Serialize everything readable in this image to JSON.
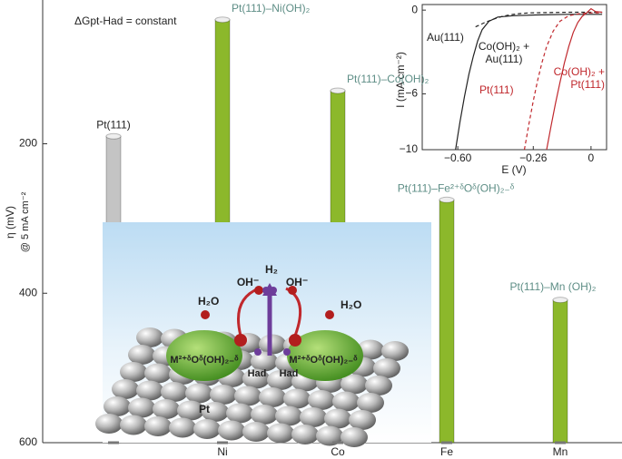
{
  "chart_data": [
    {
      "type": "bar",
      "annotation": "ΔGpt-Had = constant",
      "y_label": "η (mV)",
      "y_sublabel": "@ 5 mA cm⁻²",
      "categories": [
        null,
        "Ni",
        "Co",
        "Fe",
        "Mn"
      ],
      "values": [
        190,
        34,
        129,
        275,
        409
      ],
      "bar_labels": [
        "Pt(111)",
        "Pt(111)–Ni(OH)₂",
        "Pt(111)–Co(OH)₂",
        "Pt(111)–Fe²⁺ᵟOᵟ(OH)₂₋ᵟ",
        "Pt(111)–Mn (OH)₂"
      ],
      "colors": [
        "#c4c4c4",
        "#8cb82b",
        "#8cb82b",
        "#8cb82b",
        "#8cb82b"
      ],
      "ylim": [
        10,
        600
      ],
      "yticks": [
        200,
        400,
        600
      ],
      "inverted": true,
      "illustration_labels": [
        "H₂O",
        "OH⁻",
        "H₂",
        "OH⁻",
        "H₂O",
        "Had",
        "Had",
        "M²⁺ᵟOᵟ(OH)₂₋ᵟ",
        "M²⁺ᵟOᵟ(OH)₂₋ᵟ",
        "Pt"
      ]
    },
    {
      "type": "line",
      "x_label": "E (V)",
      "y_label": "I (mA cm⁻²)",
      "xlim": [
        -0.76,
        0.07
      ],
      "ylim": [
        -10,
        0.4
      ],
      "xticks": [
        {
          "value": -0.6,
          "label": "−0.60"
        },
        {
          "value": -0.26,
          "label": "−0.26"
        },
        0
      ],
      "yticks": [
        0,
        {
          "value": -6,
          "label": "−6"
        },
        {
          "value": -10,
          "label": "−10"
        }
      ],
      "series": [
        {
          "name": "Au(111)",
          "color": "#222222",
          "dash": false,
          "x": [
            -0.61,
            -0.59,
            -0.57,
            -0.55,
            -0.53,
            -0.51,
            -0.49,
            -0.46,
            -0.42,
            -0.35,
            -0.25,
            -0.1,
            0.05
          ],
          "values": [
            -10,
            -8,
            -6.2,
            -4.6,
            -3.3,
            -2.2,
            -1.4,
            -0.8,
            -0.5,
            -0.4,
            -0.35,
            -0.3,
            -0.3
          ]
        },
        {
          "name": "Co(OH)₂ + Au(111)",
          "color": "#222222",
          "dash": true,
          "x": [
            -0.52,
            -0.48,
            -0.44,
            -0.4,
            -0.36,
            -0.32,
            -0.28,
            -0.2,
            -0.1,
            0.05
          ],
          "values": [
            -1.2,
            -0.9,
            -0.65,
            -0.45,
            -0.32,
            -0.25,
            -0.2,
            -0.18,
            -0.15,
            -0.15
          ]
        },
        {
          "name": "Pt(111)",
          "color": "#c0282d",
          "dash": true,
          "x": [
            -0.3,
            -0.28,
            -0.26,
            -0.24,
            -0.22,
            -0.2,
            -0.17,
            -0.14,
            -0.1,
            -0.05,
            0,
            0.05
          ],
          "values": [
            -10,
            -8.2,
            -6.5,
            -5,
            -3.7,
            -2.6,
            -1.5,
            -0.8,
            -0.4,
            -0.25,
            -0.2,
            -0.2
          ]
        },
        {
          "name": "Co(OH)₂ + Pt(111)",
          "color": "#c0282d",
          "dash": false,
          "x": [
            -0.2,
            -0.18,
            -0.16,
            -0.14,
            -0.12,
            -0.1,
            -0.08,
            -0.06,
            -0.04,
            -0.02,
            0,
            0.02,
            0.05
          ],
          "values": [
            -10,
            -8.3,
            -6.7,
            -5.2,
            -3.8,
            -2.6,
            -1.6,
            -0.9,
            -0.45,
            -0.2,
            0.1,
            -0.1,
            -0.15
          ]
        }
      ]
    }
  ]
}
